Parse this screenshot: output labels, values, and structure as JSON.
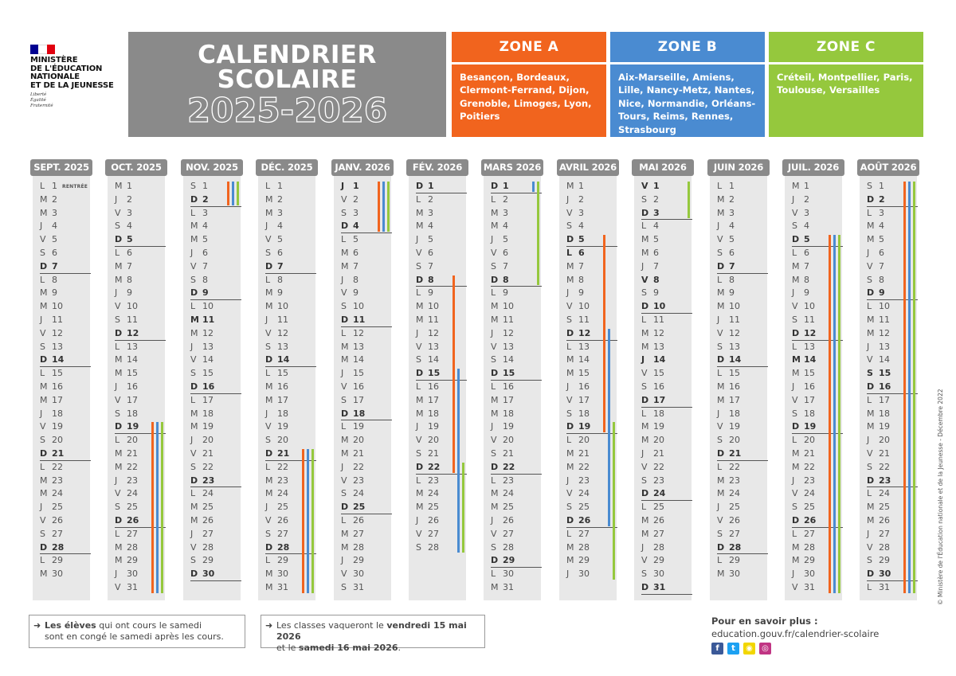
{
  "logo": {
    "ministry_lines": [
      "MINISTÈRE",
      "DE L'ÉDUCATION",
      "NATIONALE",
      "ET DE LA JEUNESSE"
    ],
    "devise": [
      "Liberté",
      "Égalité",
      "Fraternité"
    ]
  },
  "title": {
    "line1": "CALENDRIER",
    "line2": "SCOLAIRE",
    "years": "2025-2026"
  },
  "zones": [
    {
      "id": "A",
      "name": "ZONE A",
      "cities": "Besançon, Bordeaux, Clermont-Ferrand, Dijon, Grenoble, Limoges, Lyon, Poitiers",
      "color": "#f1641e"
    },
    {
      "id": "B",
      "name": "ZONE B",
      "cities": "Aix-Marseille, Amiens, Lille, Nancy-Metz, Nantes, Nice, Normandie, Orléans-Tours, Reims, Rennes, Strasbourg",
      "color": "#4a8bd1"
    },
    {
      "id": "C",
      "name": "ZONE C",
      "cities": "Créteil, Montpellier, Paris, Toulouse, Versailles",
      "color": "#95c83d"
    }
  ],
  "day_letters": {
    "0": "D",
    "1": "L",
    "2": "M",
    "3": "M",
    "4": "J",
    "5": "V",
    "6": "S"
  },
  "months": [
    {
      "label": "SEPT. 2025",
      "year": 2025,
      "month": 9,
      "days": 30,
      "notes": {
        "1": "RENTRÉE"
      },
      "holidays": []
    },
    {
      "label": "OCT. 2025",
      "year": 2025,
      "month": 10,
      "days": 31,
      "notes": {},
      "holidays": [
        {
          "zone": "A",
          "from": 19,
          "to": 31
        },
        {
          "zone": "B",
          "from": 19,
          "to": 31
        },
        {
          "zone": "C",
          "from": 19,
          "to": 31
        }
      ]
    },
    {
      "label": "NOV. 2025",
      "year": 2025,
      "month": 11,
      "days": 30,
      "notes": {},
      "holidays": [
        {
          "zone": "A",
          "from": 1,
          "to": 2
        },
        {
          "zone": "B",
          "from": 1,
          "to": 2
        },
        {
          "zone": "C",
          "from": 1,
          "to": 2
        }
      ]
    },
    {
      "label": "DÉC. 2025",
      "year": 2025,
      "month": 12,
      "days": 31,
      "notes": {},
      "holidays": [
        {
          "zone": "A",
          "from": 21,
          "to": 31
        },
        {
          "zone": "B",
          "from": 21,
          "to": 31
        },
        {
          "zone": "C",
          "from": 21,
          "to": 31
        }
      ]
    },
    {
      "label": "JANV. 2026",
      "year": 2026,
      "month": 1,
      "days": 31,
      "notes": {},
      "holidays": [
        {
          "zone": "A",
          "from": 1,
          "to": 4
        },
        {
          "zone": "B",
          "from": 1,
          "to": 4
        },
        {
          "zone": "C",
          "from": 1,
          "to": 4
        }
      ]
    },
    {
      "label": "FÉV. 2026",
      "year": 2026,
      "month": 2,
      "days": 28,
      "notes": {},
      "holidays": [
        {
          "zone": "A",
          "from": 8,
          "to": 22
        },
        {
          "zone": "B",
          "from": 15,
          "to": 28
        },
        {
          "zone": "C",
          "from": 22,
          "to": 28
        }
      ]
    },
    {
      "label": "MARS 2026",
      "year": 2026,
      "month": 3,
      "days": 31,
      "notes": {},
      "holidays": [
        {
          "zone": "B",
          "from": 1,
          "to": 1
        },
        {
          "zone": "C",
          "from": 1,
          "to": 8
        }
      ]
    },
    {
      "label": "AVRIL 2026",
      "year": 2026,
      "month": 4,
      "days": 30,
      "notes": {},
      "holidays": [
        {
          "zone": "A",
          "from": 5,
          "to": 19
        },
        {
          "zone": "B",
          "from": 12,
          "to": 26
        },
        {
          "zone": "C",
          "from": 19,
          "to": 30
        }
      ]
    },
    {
      "label": "MAI 2026",
      "year": 2026,
      "month": 5,
      "days": 31,
      "notes": {},
      "holidays": [
        {
          "zone": "C",
          "from": 1,
          "to": 3
        }
      ]
    },
    {
      "label": "JUIN 2026",
      "year": 2026,
      "month": 6,
      "days": 30,
      "notes": {},
      "holidays": []
    },
    {
      "label": "JUIL. 2026",
      "year": 2026,
      "month": 7,
      "days": 31,
      "notes": {},
      "holidays": [
        {
          "zone": "A",
          "from": 5,
          "to": 31
        },
        {
          "zone": "B",
          "from": 5,
          "to": 31
        },
        {
          "zone": "C",
          "from": 5,
          "to": 31
        }
      ]
    },
    {
      "label": "AOÛT 2026",
      "year": 2026,
      "month": 8,
      "days": 31,
      "notes": {},
      "holidays": [
        {
          "zone": "A",
          "from": 1,
          "to": 31
        },
        {
          "zone": "B",
          "from": 1,
          "to": 31
        },
        {
          "zone": "C",
          "from": 1,
          "to": 31
        }
      ]
    }
  ],
  "bold_days": [
    "2025-11-11",
    "2026-01-01",
    "2026-04-06",
    "2026-05-01",
    "2026-05-08",
    "2026-05-14",
    "2026-07-14",
    "2026-08-15"
  ],
  "footer": {
    "note1_bold": "Les élèves",
    "note1_rest": " qui ont cours le samedi",
    "note1_line2": "sont en congé le samedi après les cours.",
    "note2_pre": "Les classes vaqueront le ",
    "note2_bold1": "vendredi 15 mai 2026",
    "note2_mid": "et le ",
    "note2_bold2": "samedi 16 mai 2026",
    "note2_end": ".",
    "more_title": "Pour en savoir plus :",
    "more_url": "education.gouv.fr/calendrier-scolaire",
    "social_icons": [
      "facebook-icon",
      "twitter-icon",
      "snapchat-icon",
      "instagram-icon"
    ],
    "copyright": "© Ministère de l'Éducation nationale et de la Jeunesse - Décembre 2022"
  }
}
